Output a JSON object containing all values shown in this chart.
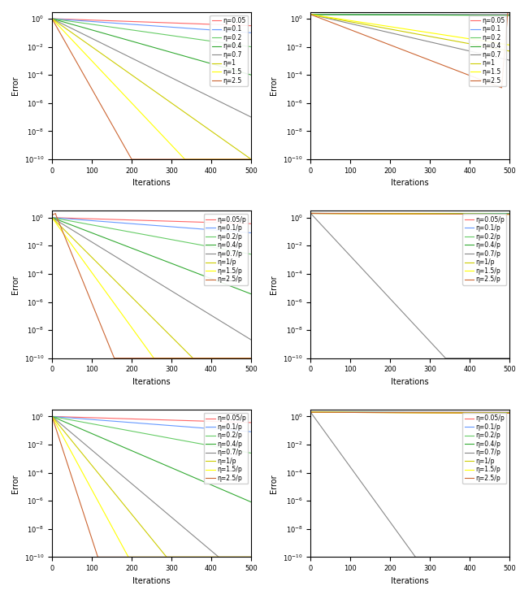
{
  "etas_top": [
    0.05,
    0.1,
    0.2,
    0.4,
    0.7,
    1.0,
    1.5,
    2.5
  ],
  "colors_top": [
    "#FF6666",
    "#6699FF",
    "#66CC66",
    "#33AA33",
    "#888888",
    "#CCCC00",
    "#FFFF00",
    "#CC6633"
  ],
  "labels_top": [
    "η=0.05",
    "η=0.1",
    "η=0.2",
    "η=0.4",
    "η=0.7",
    "η=1",
    "η=1.5",
    "η=2.5"
  ],
  "labels_mid": [
    "η=0.05/p",
    "η=0.1/p",
    "η=0.2/p",
    "η=0.4/p",
    "η=0.7/p",
    "η=1/p",
    "η=1.5/p",
    "η=2.5/p"
  ],
  "N": 500,
  "ylim": [
    1e-10,
    3.0
  ],
  "xlim": [
    0,
    500
  ]
}
